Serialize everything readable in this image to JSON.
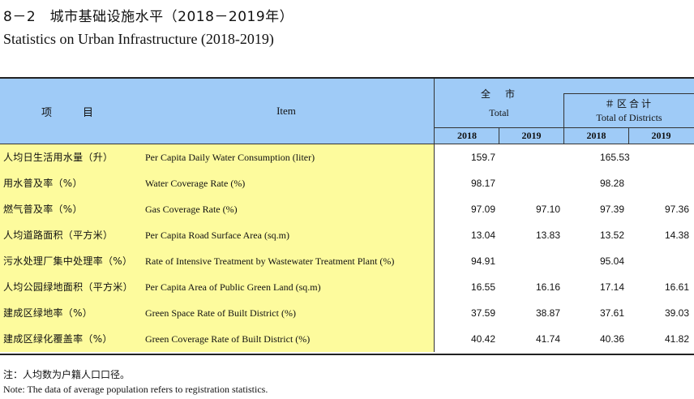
{
  "title": {
    "cn": "8－2　城市基础设施水平（2018－2019年）",
    "en": "Statistics on Urban Infrastructure (2018-2019)"
  },
  "header": {
    "item_cn": "项　　目",
    "item_en": "Item",
    "group_total_cn": "全　市",
    "group_total_en": "Total",
    "group_districts_cn": "＃区合计",
    "group_districts_en": "Total of Districts",
    "years": [
      "2018",
      "2019",
      "2018",
      "2019"
    ]
  },
  "rows": [
    {
      "cn": "人均日生活用水量（升）",
      "en": "Per Capita Daily Water Consumption (liter)",
      "values": [
        "159.7",
        "",
        "165.53",
        ""
      ]
    },
    {
      "cn": "用水普及率（%）",
      "en": "Water Coverage Rate (%)",
      "values": [
        "98.17",
        "",
        "98.28",
        ""
      ]
    },
    {
      "cn": "燃气普及率（%）",
      "en": "Gas Coverage Rate (%)",
      "values": [
        "97.09",
        "97.10",
        "97.39",
        "97.36"
      ]
    },
    {
      "cn": "人均道路面积（平方米）",
      "en": "Per Capita Road Surface Area (sq.m)",
      "values": [
        "13.04",
        "13.83",
        "13.52",
        "14.38"
      ]
    },
    {
      "cn": "污水处理厂集中处理率（%）",
      "en": "Rate of Intensive Treatment by Wastewater Treatment Plant (%)",
      "values": [
        "94.91",
        "",
        "95.04",
        ""
      ]
    },
    {
      "cn": "人均公园绿地面积（平方米）",
      "en": "Per Capita Area of Public Green Land (sq.m)",
      "values": [
        "16.55",
        "16.16",
        "17.14",
        "16.61"
      ]
    },
    {
      "cn": "建成区绿地率（%）",
      "en": "Green Space Rate of Built District (%)",
      "values": [
        "37.59",
        "38.87",
        "37.61",
        "39.03"
      ]
    },
    {
      "cn": "建成区绿化覆盖率（%）",
      "en": "Green Coverage Rate of Built District (%)",
      "values": [
        "40.42",
        "41.74",
        "40.36",
        "41.82"
      ]
    }
  ],
  "note": {
    "cn": "注：人均数为户籍人口口径。",
    "en": "Note: The data of average population refers to registration statistics."
  },
  "colors": {
    "header_bg": "#9fcbf7",
    "item_bg": "#fdfb9d"
  }
}
